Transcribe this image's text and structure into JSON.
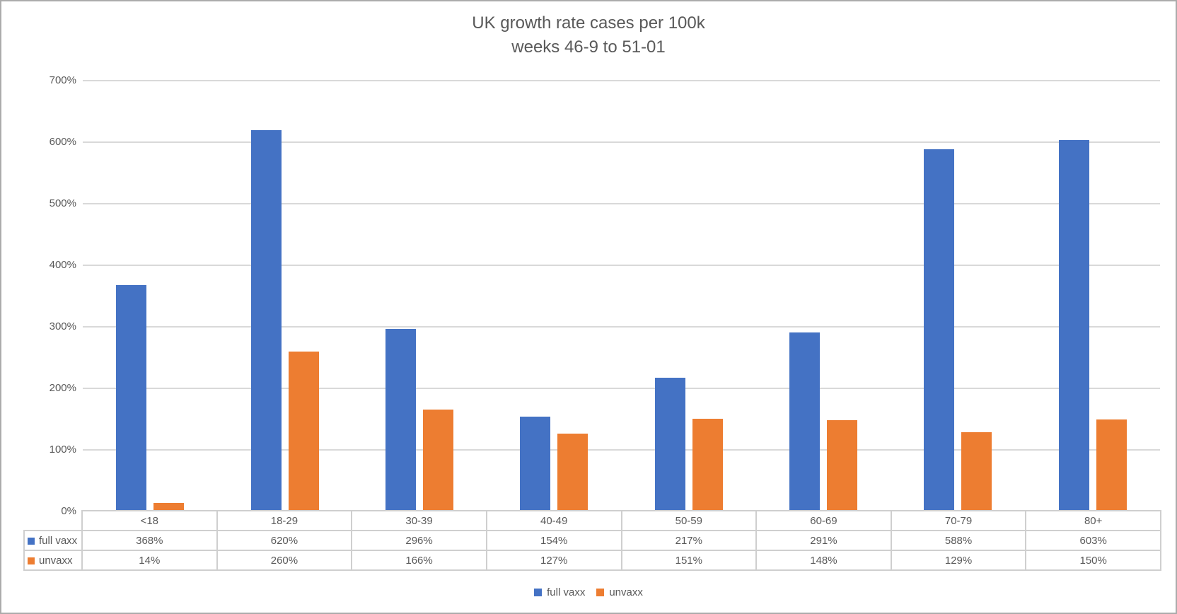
{
  "chart_data": {
    "type": "bar",
    "title": "UK growth rate cases per 100k",
    "subtitle": "weeks 46-9 to 51-01",
    "categories": [
      "<18",
      "18-29",
      "30-39",
      "40-49",
      "50-59",
      "60-69",
      "70-79",
      "80+"
    ],
    "series": [
      {
        "name": "full vaxx",
        "color": "#4472C4",
        "values": [
          368,
          620,
          296,
          154,
          217,
          291,
          588,
          603
        ]
      },
      {
        "name": "unvaxx",
        "color": "#ED7D31",
        "values": [
          14,
          260,
          166,
          127,
          151,
          148,
          129,
          150
        ]
      }
    ],
    "value_suffix": "%",
    "ylim": [
      0,
      700
    ],
    "ytick_step": 100,
    "ytick_labels": [
      "0%",
      "100%",
      "200%",
      "300%",
      "400%",
      "500%",
      "600%",
      "700%"
    ],
    "grid": true,
    "legend_position": "bottom",
    "show_data_table": true,
    "colors": {
      "text": "#595959",
      "gridline": "#D9D9D9",
      "table_border": "#CFCFCF",
      "frame_border": "#ABABAB"
    }
  }
}
